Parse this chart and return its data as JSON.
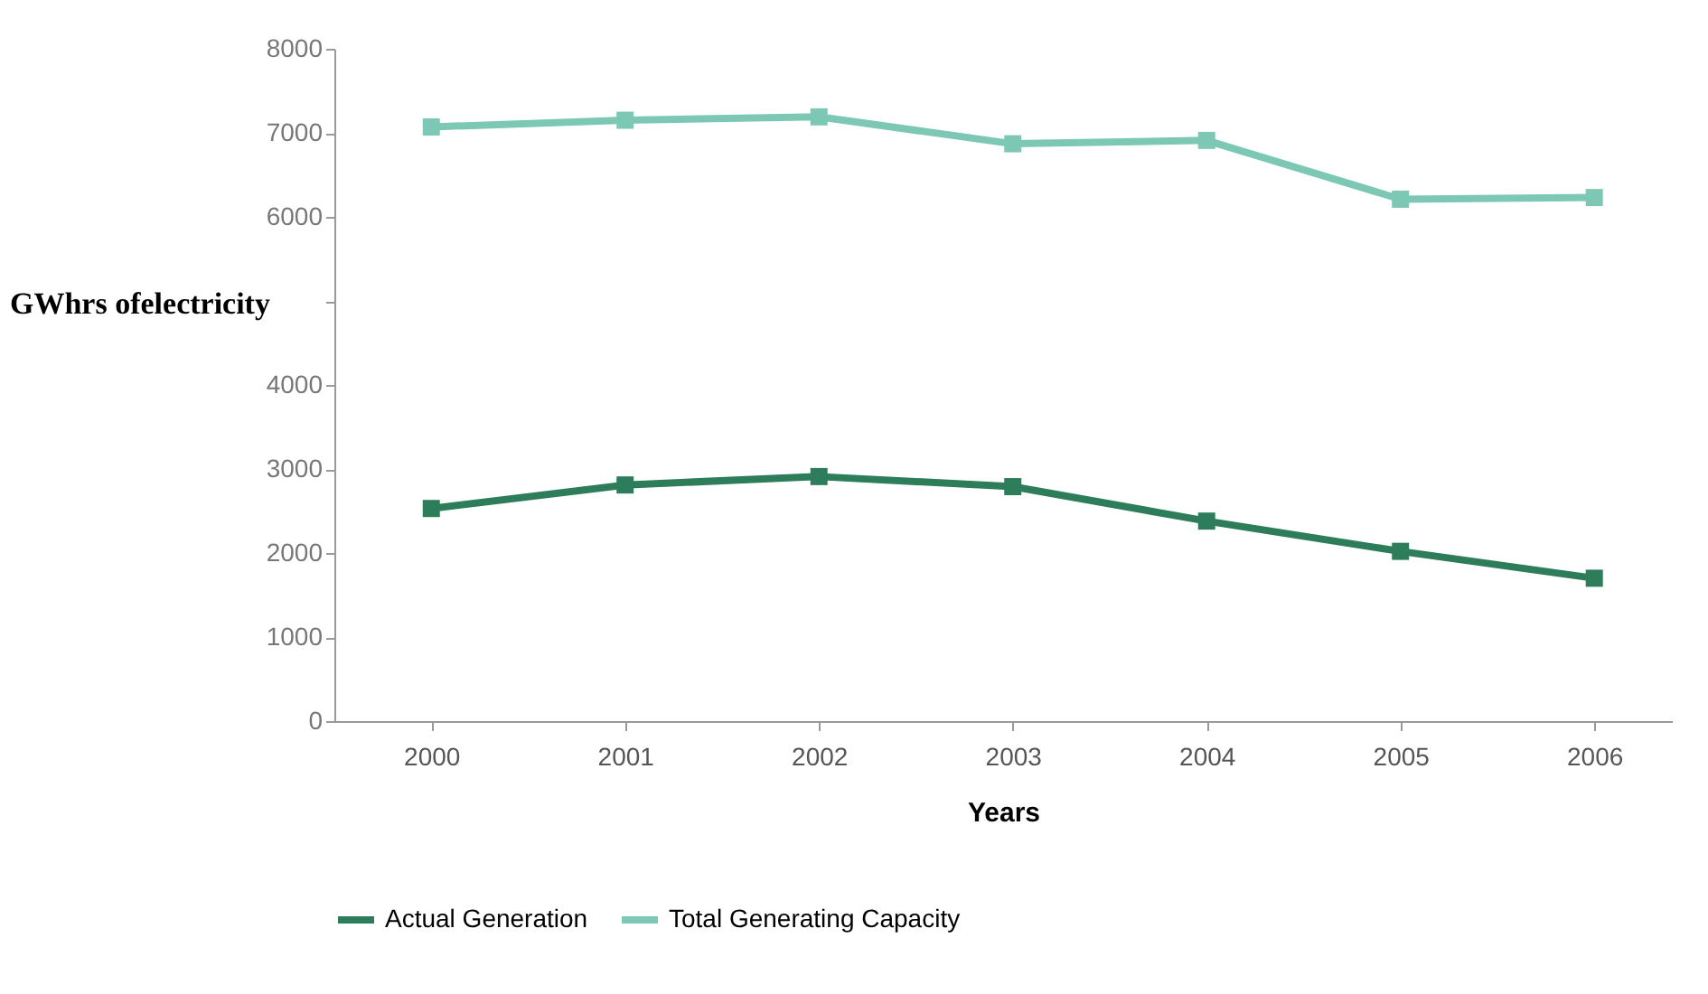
{
  "chart_data": {
    "type": "line",
    "xlabel": "Years",
    "ylabel": "GWhrs ofelectricity",
    "categories": [
      "2000",
      "2001",
      "2002",
      "2003",
      "2004",
      "2005",
      "2006"
    ],
    "series": [
      {
        "name": "Actual Generation",
        "color": "#2e7d5a",
        "values": [
          2530,
          2810,
          2910,
          2790,
          2380,
          2020,
          1700
        ]
      },
      {
        "name": "Total Generating Capacity",
        "color": "#7cc8b4",
        "values": [
          7070,
          7150,
          7190,
          6870,
          6910,
          6210,
          6230
        ]
      }
    ],
    "ylim": [
      0,
      8000
    ],
    "yticks": [
      0,
      1000,
      2000,
      3000,
      4000,
      {
        "value": 5000,
        "label": null
      },
      6000,
      7000,
      8000
    ],
    "grid": false,
    "legend": "bottom",
    "marker": "square",
    "line_style": "solid"
  }
}
